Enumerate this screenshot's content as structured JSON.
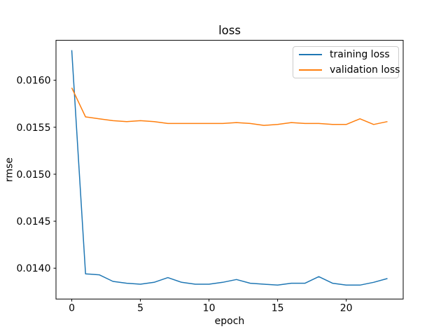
{
  "figure": {
    "background": "#ffffff",
    "spine_color": "#000000",
    "tick_color": "#000000"
  },
  "chart_data": {
    "type": "line",
    "title": "loss",
    "xlabel": "epoch",
    "ylabel": "rmse",
    "grid": false,
    "legend_position": "upper right",
    "xlim": [
      -1.15,
      24.15
    ],
    "ylim": [
      0.013672,
      0.016425
    ],
    "xticks": [
      0,
      5,
      10,
      15,
      20
    ],
    "yticks": [
      0.014,
      0.0145,
      0.015,
      0.0155,
      0.016
    ],
    "ytick_labels": [
      "0.0140",
      "0.0145",
      "0.0150",
      "0.0155",
      "0.0160"
    ],
    "x": [
      0,
      1,
      2,
      3,
      4,
      5,
      6,
      7,
      8,
      9,
      10,
      11,
      12,
      13,
      14,
      15,
      16,
      17,
      18,
      19,
      20,
      21,
      22,
      23
    ],
    "series": [
      {
        "name": "training loss",
        "color": "#1f77b4",
        "values": [
          0.01632,
          0.01394,
          0.01393,
          0.01386,
          0.01384,
          0.01383,
          0.01385,
          0.0139,
          0.01385,
          0.01383,
          0.01383,
          0.01385,
          0.01388,
          0.01384,
          0.01383,
          0.01382,
          0.01384,
          0.01384,
          0.01391,
          0.01384,
          0.01382,
          0.01382,
          0.01385,
          0.01389
        ]
      },
      {
        "name": "validation loss",
        "color": "#ff7f0e",
        "values": [
          0.01592,
          0.01561,
          0.01559,
          0.01557,
          0.01556,
          0.01557,
          0.01556,
          0.01554,
          0.01554,
          0.01554,
          0.01554,
          0.01554,
          0.01555,
          0.01554,
          0.01552,
          0.01553,
          0.01555,
          0.01554,
          0.01554,
          0.01553,
          0.01553,
          0.01559,
          0.01553,
          0.01556
        ]
      }
    ]
  }
}
